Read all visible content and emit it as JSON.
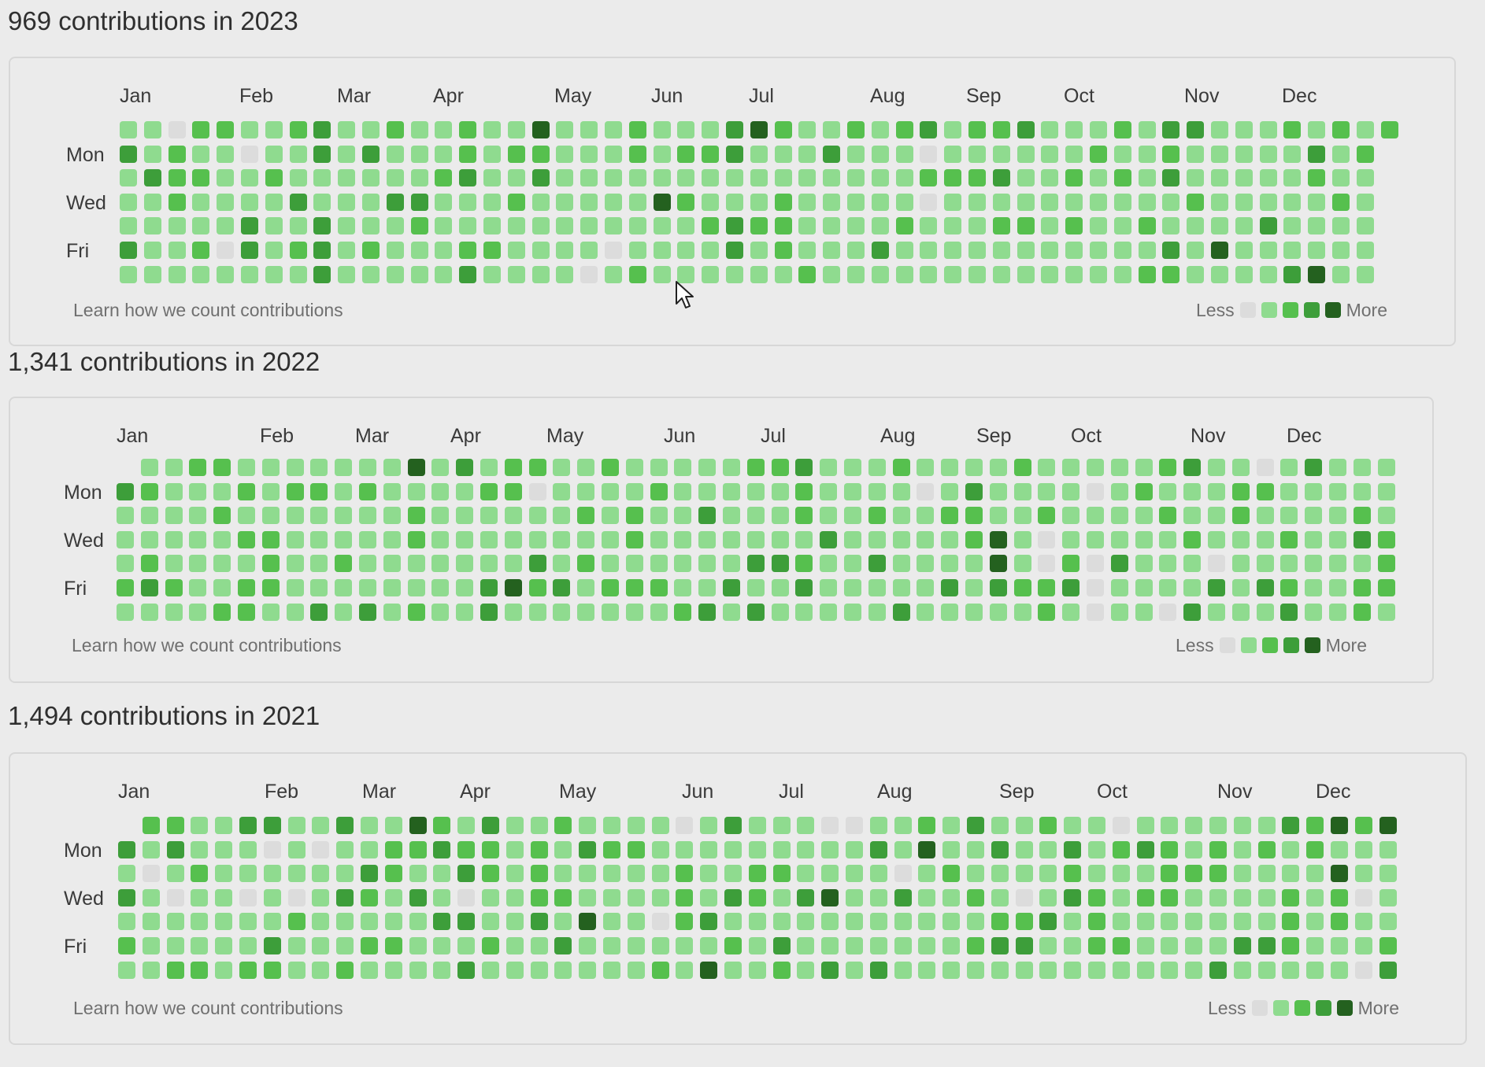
{
  "legend_colors": [
    "#dcdcdc",
    "#8fdb8f",
    "#56c04e",
    "#3d9e3a",
    "#24611f"
  ],
  "years": [
    {
      "title": "969 contributions in 2023",
      "months": [
        "Jan",
        "Feb",
        "Mar",
        "Apr",
        "May",
        "Jun",
        "Jul",
        "Aug",
        "Sep",
        "Oct",
        "Nov",
        "Dec"
      ],
      "day_labels": [
        "Mon",
        "Wed",
        "Fri"
      ],
      "learn_link": "Learn how we count contributions",
      "legend_less": "Less",
      "legend_more": "More",
      "seed": 3
    },
    {
      "title": "1,341 contributions in 2022",
      "months": [
        "Jan",
        "Feb",
        "Mar",
        "Apr",
        "May",
        "Jun",
        "Jul",
        "Aug",
        "Sep",
        "Oct",
        "Nov",
        "Dec"
      ],
      "day_labels": [
        "Mon",
        "Wed",
        "Fri"
      ],
      "learn_link": "Learn how we count contributions",
      "legend_less": "Less",
      "legend_more": "More",
      "seed": 11
    },
    {
      "title": "1,494 contributions in 2021",
      "months": [
        "Jan",
        "Feb",
        "Mar",
        "Apr",
        "May",
        "Jun",
        "Jul",
        "Aug",
        "Sep",
        "Oct",
        "Nov",
        "Dec"
      ],
      "day_labels": [
        "Mon",
        "Wed",
        "Fri"
      ],
      "learn_link": "Learn how we count contributions",
      "legend_less": "Less",
      "legend_more": "More",
      "seed": 29
    }
  ]
}
